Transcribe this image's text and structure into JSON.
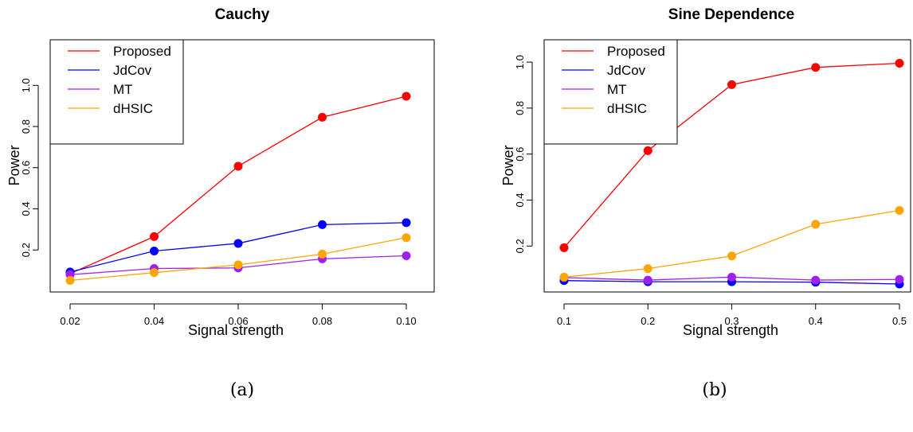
{
  "chart_data": [
    {
      "type": "line",
      "title": "Cauchy",
      "xlabel": "Signal strength",
      "ylabel": "Power",
      "x": [
        0.02,
        0.04,
        0.06,
        0.08,
        0.1
      ],
      "x_tick_labels": [
        "0.02",
        "0.04",
        "0.06",
        "0.08",
        "0.10"
      ],
      "y_ticks": [
        0.2,
        0.4,
        0.6,
        0.8,
        1.0
      ],
      "y_tick_labels": [
        "0.2",
        "0.4",
        "0.6",
        "0.8",
        "1.0"
      ],
      "xlim": [
        0.02,
        0.1
      ],
      "ylim": [
        0.052,
        0.947
      ],
      "grid": false,
      "legend_position": "top-left",
      "caption": "(a)",
      "series": [
        {
          "name": "Proposed",
          "color": "#ff0000",
          "values": [
            0.085,
            0.265,
            0.607,
            0.845,
            0.947
          ]
        },
        {
          "name": "JdCov",
          "color": "#0000ff",
          "values": [
            0.093,
            0.195,
            0.232,
            0.323,
            0.333
          ]
        },
        {
          "name": "MT",
          "color": "#a020f0",
          "values": [
            0.08,
            0.11,
            0.113,
            0.157,
            0.172
          ]
        },
        {
          "name": "dHSIC",
          "color": "#ffa500",
          "values": [
            0.052,
            0.09,
            0.128,
            0.18,
            0.26
          ]
        }
      ]
    },
    {
      "type": "line",
      "title": "Sine Dependence",
      "xlabel": "Signal strength",
      "ylabel": "Power",
      "x": [
        0.1,
        0.2,
        0.3,
        0.4,
        0.5
      ],
      "x_tick_labels": [
        "0.1",
        "0.2",
        "0.3",
        "0.4",
        "0.5"
      ],
      "y_ticks": [
        0.2,
        0.4,
        0.6,
        0.8,
        1.0
      ],
      "y_tick_labels": [
        "0.2",
        "0.4",
        "0.6",
        "0.8",
        "1.0"
      ],
      "xlim": [
        0.1,
        0.5
      ],
      "ylim": [
        0.035,
        0.995
      ],
      "grid": false,
      "legend_position": "top-left",
      "caption": "(b)",
      "series": [
        {
          "name": "Proposed",
          "color": "#ff0000",
          "values": [
            0.193,
            0.615,
            0.902,
            0.977,
            0.995
          ]
        },
        {
          "name": "JdCov",
          "color": "#0000ff",
          "values": [
            0.05,
            0.045,
            0.045,
            0.043,
            0.035
          ]
        },
        {
          "name": "MT",
          "color": "#a020f0",
          "values": [
            0.063,
            0.052,
            0.065,
            0.052,
            0.055
          ]
        },
        {
          "name": "dHSIC",
          "color": "#ffa500",
          "values": [
            0.065,
            0.102,
            0.157,
            0.295,
            0.355
          ]
        }
      ]
    }
  ]
}
